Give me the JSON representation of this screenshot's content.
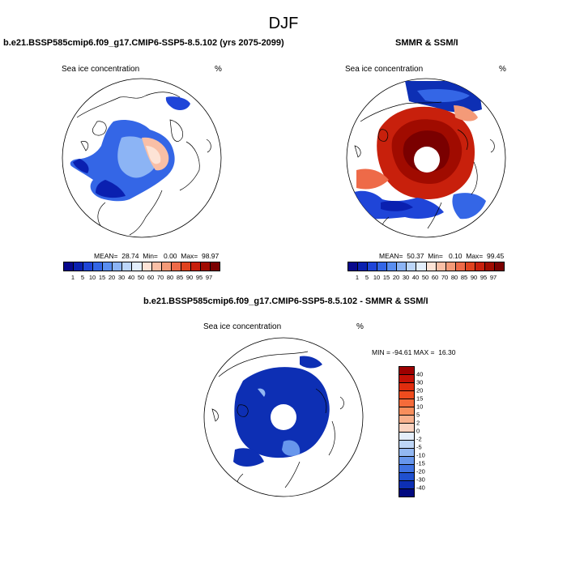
{
  "figure_title": "DJF",
  "panel_left": {
    "title": "b.e21.BSSP585cmip6.f09_g17.CMIP6-SSP5-8.5.102 (yrs 2075-2099)",
    "variable": "Sea ice concentration",
    "units": "%",
    "stats": "MEAN=  28.74  Min=   0.00  Max=  98.97"
  },
  "panel_right": {
    "title": "SMMR & SSM/I",
    "variable": "Sea ice concentration",
    "units": "%",
    "stats": "MEAN=  50.37  Min=   0.10  Max=  99.45"
  },
  "panel_diff": {
    "title": "b.e21.BSSP585cmip6.f09_g17.CMIP6-SSP5-8.5.102 - SMMR & SSM/I",
    "variable": "Sea ice concentration",
    "units": "%",
    "stats": "MIN = -94.61 MAX =  16.30"
  },
  "colorbar_abs": {
    "labels": [
      "1",
      "5",
      "10",
      "15",
      "20",
      "30",
      "40",
      "50",
      "60",
      "70",
      "80",
      "85",
      "90",
      "95",
      "97"
    ],
    "colors": [
      "#08088c",
      "#0a20b0",
      "#1f45d8",
      "#3466e6",
      "#5a8ef0",
      "#8cb4f5",
      "#bcd6fa",
      "#e2eefc",
      "#fde3d6",
      "#f9bfa6",
      "#f49a78",
      "#ee6a48",
      "#e0431f",
      "#c8200c",
      "#a00b00",
      "#7a0000"
    ]
  },
  "colorbar_diff": {
    "labels": [
      "40",
      "30",
      "20",
      "15",
      "10",
      "5",
      "2",
      "0",
      "-2",
      "-5",
      "-10",
      "-15",
      "-20",
      "-30",
      "-40"
    ],
    "colors": [
      "#9e0000",
      "#c41106",
      "#e02d0e",
      "#ef4c1e",
      "#f56b3a",
      "#f78e5c",
      "#f8b08c",
      "#fbd3c0",
      "#e4eefb",
      "#bed6f7",
      "#93b8f2",
      "#6796ec",
      "#3f72e2",
      "#2050cf",
      "#0d2fb4",
      "#020a80"
    ]
  }
}
